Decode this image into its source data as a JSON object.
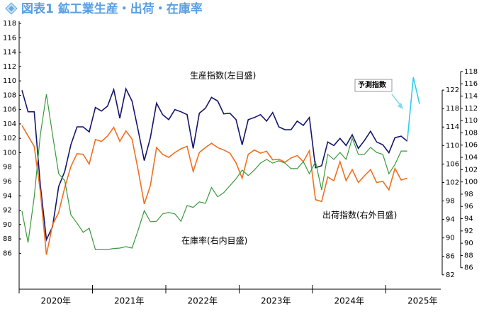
{
  "chart_data": {
    "type": "line",
    "title": "図表1 鉱工業生産・出荷・在庫率",
    "year_labels": [
      "2020年",
      "2021年",
      "2022年",
      "2023年",
      "2024年",
      "2025年"
    ],
    "ylim": [
      81,
      118.3
    ],
    "yticks": [
      86,
      88,
      90,
      92,
      94,
      96,
      98,
      100,
      102,
      104,
      106,
      108,
      110,
      112,
      114,
      116,
      118
    ],
    "y2lim": [
      78.9,
      136.9
    ],
    "y2ticks": [
      82,
      86,
      90,
      94,
      98,
      102,
      106,
      110,
      114,
      118,
      122
    ],
    "y3lim": [
      82.5,
      126.2
    ],
    "y3ticks": [
      86,
      88,
      90,
      92,
      94,
      96,
      98,
      100,
      102,
      104,
      106,
      108,
      110,
      112,
      114,
      116,
      118
    ],
    "series": [
      {
        "name": "生産指数(左目盛)",
        "color": "#14146e",
        "axis": "y",
        "values": [
          108.7,
          105.7,
          105.7,
          95.5,
          87.9,
          89.7,
          95.3,
          97.4,
          101.1,
          103.6,
          103.6,
          102.9,
          106.3,
          105.8,
          106.5,
          108.8,
          104.8,
          108.9,
          107.2,
          103.1,
          98.9,
          102.1,
          106.9,
          105.3,
          104.6,
          106.0,
          105.7,
          105.3,
          100.6,
          105.5,
          106.2,
          107.7,
          107.2,
          105.4,
          105.5,
          104.6,
          101.1,
          104.6,
          104.9,
          105.3,
          104.4,
          105.6,
          103.6,
          103.2,
          103.2,
          104.4,
          103.8,
          104.9,
          97.9,
          98.2,
          101.5,
          101.0,
          102.0,
          101.0,
          102.5,
          100.6,
          101.7,
          103.0,
          101.5,
          101.1,
          100.0,
          102.1,
          102.3,
          101.6,
          null,
          null
        ]
      },
      {
        "name": "出荷指数(右外目盛)",
        "color": "#f07020",
        "axis": "y3",
        "values": [
          109.2,
          107.5,
          105.8,
          98.5,
          88.1,
          93.0,
          95.0,
          99.1,
          102.5,
          104.6,
          104.5,
          102.9,
          106.9,
          106.6,
          107.5,
          108.9,
          106.6,
          108.3,
          107.0,
          101.9,
          96.4,
          99.4,
          105.6,
          104.5,
          104.0,
          104.8,
          105.4,
          105.8,
          101.7,
          104.8,
          105.6,
          106.3,
          105.6,
          105.2,
          104.7,
          103.1,
          100.6,
          104.5,
          105.2,
          104.7,
          105.0,
          103.6,
          103.7,
          103.2,
          103.9,
          104.3,
          103.3,
          105.1,
          97.1,
          96.8,
          100.8,
          100.2,
          103.3,
          100.2,
          102.0,
          99.9,
          101.0,
          102.0,
          99.9,
          100.1,
          98.7,
          102.2,
          100.3,
          100.6,
          null,
          null
        ]
      },
      {
        "name": "在庫率(右内目盛)",
        "color": "#3a9a3a",
        "axis": "y2",
        "values": [
          95.8,
          89.0,
          98.9,
          112.3,
          121.1,
          112.3,
          103.9,
          102.4,
          95.0,
          93.2,
          91.2,
          92.1,
          87.5,
          87.5,
          87.5,
          87.7,
          87.8,
          88.1,
          87.8,
          91.7,
          95.9,
          93.5,
          93.6,
          95.2,
          95.5,
          95.2,
          93.6,
          97.0,
          96.6,
          97.8,
          97.5,
          100.9,
          98.9,
          99.8,
          101.3,
          102.8,
          104.7,
          103.5,
          104.7,
          106.2,
          107.0,
          106.2,
          106.7,
          106.2,
          105.0,
          105.0,
          106.5,
          103.9,
          106.5,
          100.4,
          108.1,
          107.0,
          108.5,
          107.0,
          111.6,
          108.1,
          108.1,
          109.6,
          108.5,
          108.1,
          103.9,
          105.9,
          108.8,
          108.8,
          null,
          null
        ]
      },
      {
        "name": "予測指数",
        "color": "#33ccee",
        "axis": "y",
        "values": [
          null,
          null,
          null,
          null,
          null,
          null,
          null,
          null,
          null,
          null,
          null,
          null,
          null,
          null,
          null,
          null,
          null,
          null,
          null,
          null,
          null,
          null,
          null,
          null,
          null,
          null,
          null,
          null,
          null,
          null,
          null,
          null,
          null,
          null,
          null,
          null,
          null,
          null,
          null,
          null,
          null,
          null,
          null,
          null,
          null,
          null,
          null,
          null,
          null,
          null,
          null,
          null,
          null,
          null,
          null,
          null,
          null,
          null,
          null,
          null,
          null,
          null,
          null,
          101.6,
          110.5,
          106.8
        ]
      }
    ]
  }
}
